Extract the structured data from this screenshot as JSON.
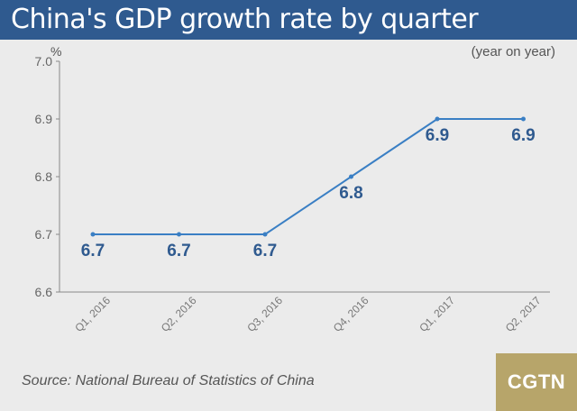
{
  "header": {
    "title": "China's GDP growth rate by quarter"
  },
  "footer": {
    "source": "Source: National Bureau of Statistics of China",
    "logo_text": "CGTN"
  },
  "colors": {
    "header_bg": "#2f5a8f",
    "line": "#3a7fc4",
    "label": "#2f5a8f",
    "logo_bg": "#b7a56a"
  },
  "chart_data": {
    "type": "line",
    "title": "China's GDP growth rate by quarter",
    "ylabel": "%",
    "annotation": "(year on year)",
    "categories": [
      "Q1, 2016",
      "Q2, 2016",
      "Q3, 2016",
      "Q4, 2016",
      "Q1, 2017",
      "Q2, 2017"
    ],
    "series": [
      {
        "values": [
          6.7,
          6.7,
          6.7,
          6.8,
          6.9,
          6.9
        ]
      }
    ],
    "data_labels": [
      "6.7",
      "6.7",
      "6.7",
      "6.8",
      "6.9",
      "6.9"
    ],
    "ylim": [
      6.6,
      7.0
    ],
    "yticks": [
      "6.6",
      "6.7",
      "6.8",
      "6.9",
      "7.0"
    ],
    "grid": false,
    "legend": "none"
  }
}
